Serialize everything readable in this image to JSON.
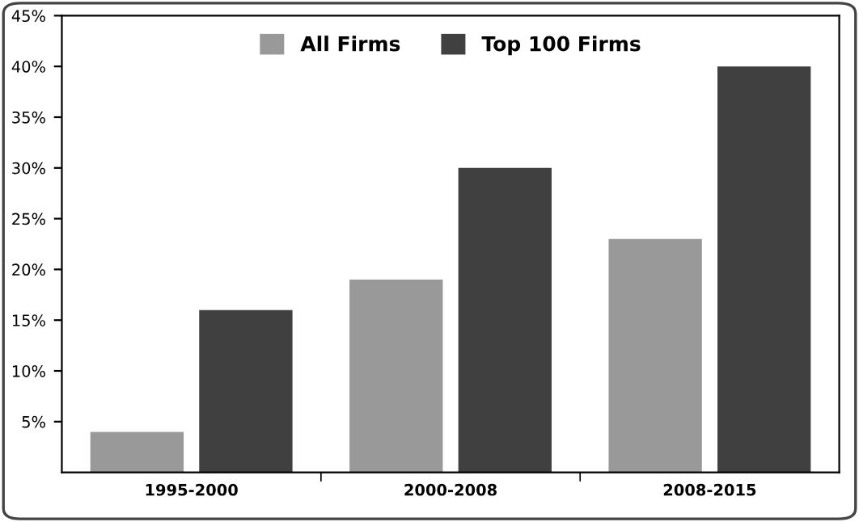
{
  "chart_data": {
    "type": "bar",
    "categories": [
      "1995-2000",
      "2000-2008",
      "2008-2015"
    ],
    "series": [
      {
        "name": "All Firms",
        "color": "#999999",
        "values": [
          4,
          19,
          23
        ]
      },
      {
        "name": "Top 100 Firms",
        "color": "#404040",
        "values": [
          16,
          30,
          40
        ]
      }
    ],
    "ylim": [
      0,
      45
    ],
    "yticks": [
      {
        "value": 5,
        "label": "5%"
      },
      {
        "value": 10,
        "label": "10%"
      },
      {
        "value": 15,
        "label": "15%"
      },
      {
        "value": 20,
        "label": "20%"
      },
      {
        "value": 25,
        "label": "25%"
      },
      {
        "value": 30,
        "label": "30%"
      },
      {
        "value": 35,
        "label": "35%"
      },
      {
        "value": 40,
        "label": "40%"
      },
      {
        "value": 45,
        "label": "45%"
      }
    ],
    "grid": false,
    "legend": "top"
  }
}
